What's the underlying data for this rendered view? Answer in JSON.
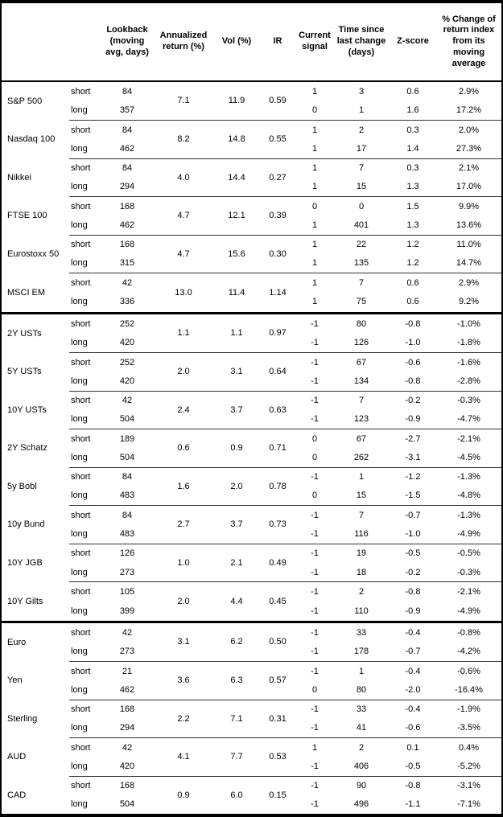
{
  "colors": {
    "border": "#000000",
    "text": "#000000",
    "background": "#ffffff"
  },
  "table": {
    "columns": [
      {
        "id": "asset",
        "label": ""
      },
      {
        "id": "leg",
        "label": ""
      },
      {
        "id": "lookback",
        "label": "Lookback (moving avg, days)"
      },
      {
        "id": "annualized_return",
        "label": "Annualized return (%)"
      },
      {
        "id": "vol",
        "label": "Vol (%)"
      },
      {
        "id": "ir",
        "label": "IR"
      },
      {
        "id": "current_signal",
        "label": "Current signal"
      },
      {
        "id": "time_since_last_change",
        "label": "Time since last change (days)"
      },
      {
        "id": "z_score",
        "label": "Z-score"
      },
      {
        "id": "pct_change_from_ma",
        "label": "% Change of return index from its moving average"
      }
    ],
    "sections": [
      {
        "assets": [
          {
            "name": "S&P 500",
            "annualized_return": "7.1",
            "vol": "11.9",
            "ir": "0.59",
            "rows": [
              {
                "leg": "short",
                "lookback": "84",
                "current_signal": "1",
                "time_since_last_change": "3",
                "z_score": "0.6",
                "pct_change_from_ma": "2.9%"
              },
              {
                "leg": "long",
                "lookback": "357",
                "current_signal": "0",
                "time_since_last_change": "1",
                "z_score": "1.6",
                "pct_change_from_ma": "17.2%"
              }
            ]
          },
          {
            "name": "Nasdaq 100",
            "annualized_return": "8.2",
            "vol": "14.8",
            "ir": "0.55",
            "rows": [
              {
                "leg": "short",
                "lookback": "84",
                "current_signal": "1",
                "time_since_last_change": "2",
                "z_score": "0.3",
                "pct_change_from_ma": "2.0%"
              },
              {
                "leg": "long",
                "lookback": "462",
                "current_signal": "1",
                "time_since_last_change": "17",
                "z_score": "1.4",
                "pct_change_from_ma": "27.3%"
              }
            ]
          },
          {
            "name": "Nikkei",
            "annualized_return": "4.0",
            "vol": "14.4",
            "ir": "0.27",
            "rows": [
              {
                "leg": "short",
                "lookback": "84",
                "current_signal": "1",
                "time_since_last_change": "7",
                "z_score": "0.3",
                "pct_change_from_ma": "2.1%"
              },
              {
                "leg": "long",
                "lookback": "294",
                "current_signal": "1",
                "time_since_last_change": "15",
                "z_score": "1.3",
                "pct_change_from_ma": "17.0%"
              }
            ]
          },
          {
            "name": "FTSE 100",
            "annualized_return": "4.7",
            "vol": "12.1",
            "ir": "0.39",
            "rows": [
              {
                "leg": "short",
                "lookback": "168",
                "current_signal": "0",
                "time_since_last_change": "0",
                "z_score": "1.5",
                "pct_change_from_ma": "9.9%"
              },
              {
                "leg": "long",
                "lookback": "462",
                "current_signal": "1",
                "time_since_last_change": "401",
                "z_score": "1.3",
                "pct_change_from_ma": "13.6%"
              }
            ]
          },
          {
            "name": "Eurostoxx 50",
            "annualized_return": "4.7",
            "vol": "15.6",
            "ir": "0.30",
            "rows": [
              {
                "leg": "short",
                "lookback": "168",
                "current_signal": "1",
                "time_since_last_change": "22",
                "z_score": "1.2",
                "pct_change_from_ma": "11.0%"
              },
              {
                "leg": "long",
                "lookback": "315",
                "current_signal": "1",
                "time_since_last_change": "135",
                "z_score": "1.2",
                "pct_change_from_ma": "14.7%"
              }
            ]
          },
          {
            "name": "MSCI EM",
            "annualized_return": "13.0",
            "vol": "11.4",
            "ir": "1.14",
            "rows": [
              {
                "leg": "short",
                "lookback": "42",
                "current_signal": "1",
                "time_since_last_change": "7",
                "z_score": "0.6",
                "pct_change_from_ma": "2.9%"
              },
              {
                "leg": "long",
                "lookback": "336",
                "current_signal": "1",
                "time_since_last_change": "75",
                "z_score": "0.6",
                "pct_change_from_ma": "9.2%"
              }
            ]
          }
        ]
      },
      {
        "assets": [
          {
            "name": "2Y USTs",
            "annualized_return": "1.1",
            "vol": "1.1",
            "ir": "0.97",
            "rows": [
              {
                "leg": "short",
                "lookback": "252",
                "current_signal": "-1",
                "time_since_last_change": "80",
                "z_score": "-0.8",
                "pct_change_from_ma": "-1.0%"
              },
              {
                "leg": "long",
                "lookback": "420",
                "current_signal": "-1",
                "time_since_last_change": "126",
                "z_score": "-1.0",
                "pct_change_from_ma": "-1.8%"
              }
            ]
          },
          {
            "name": "5Y USTs",
            "annualized_return": "2.0",
            "vol": "3.1",
            "ir": "0.64",
            "rows": [
              {
                "leg": "short",
                "lookback": "252",
                "current_signal": "-1",
                "time_since_last_change": "67",
                "z_score": "-0.6",
                "pct_change_from_ma": "-1.6%"
              },
              {
                "leg": "long",
                "lookback": "420",
                "current_signal": "-1",
                "time_since_last_change": "134",
                "z_score": "-0.8",
                "pct_change_from_ma": "-2.8%"
              }
            ]
          },
          {
            "name": "10Y USTs",
            "annualized_return": "2.4",
            "vol": "3.7",
            "ir": "0.63",
            "rows": [
              {
                "leg": "short",
                "lookback": "42",
                "current_signal": "-1",
                "time_since_last_change": "7",
                "z_score": "-0.2",
                "pct_change_from_ma": "-0.3%"
              },
              {
                "leg": "long",
                "lookback": "504",
                "current_signal": "-1",
                "time_since_last_change": "123",
                "z_score": "-0.9",
                "pct_change_from_ma": "-4.7%"
              }
            ]
          },
          {
            "name": "2Y Schatz",
            "annualized_return": "0.6",
            "vol": "0.9",
            "ir": "0.71",
            "rows": [
              {
                "leg": "short",
                "lookback": "189",
                "current_signal": "0",
                "time_since_last_change": "67",
                "z_score": "-2.7",
                "pct_change_from_ma": "-2.1%"
              },
              {
                "leg": "long",
                "lookback": "504",
                "current_signal": "0",
                "time_since_last_change": "262",
                "z_score": "-3.1",
                "pct_change_from_ma": "-4.5%"
              }
            ]
          },
          {
            "name": "5y Bobl",
            "annualized_return": "1.6",
            "vol": "2.0",
            "ir": "0.78",
            "rows": [
              {
                "leg": "short",
                "lookback": "84",
                "current_signal": "-1",
                "time_since_last_change": "1",
                "z_score": "-1.2",
                "pct_change_from_ma": "-1.3%"
              },
              {
                "leg": "long",
                "lookback": "483",
                "current_signal": "0",
                "time_since_last_change": "15",
                "z_score": "-1.5",
                "pct_change_from_ma": "-4.8%"
              }
            ]
          },
          {
            "name": "10y Bund",
            "annualized_return": "2.7",
            "vol": "3.7",
            "ir": "0.73",
            "rows": [
              {
                "leg": "short",
                "lookback": "84",
                "current_signal": "-1",
                "time_since_last_change": "7",
                "z_score": "-0.7",
                "pct_change_from_ma": "-1.3%"
              },
              {
                "leg": "long",
                "lookback": "483",
                "current_signal": "-1",
                "time_since_last_change": "116",
                "z_score": "-1.0",
                "pct_change_from_ma": "-4.9%"
              }
            ]
          },
          {
            "name": "10Y JGB",
            "annualized_return": "1.0",
            "vol": "2.1",
            "ir": "0.49",
            "rows": [
              {
                "leg": "short",
                "lookback": "126",
                "current_signal": "-1",
                "time_since_last_change": "19",
                "z_score": "-0.5",
                "pct_change_from_ma": "-0.5%"
              },
              {
                "leg": "long",
                "lookback": "273",
                "current_signal": "-1",
                "time_since_last_change": "18",
                "z_score": "-0.2",
                "pct_change_from_ma": "-0.3%"
              }
            ]
          },
          {
            "name": "10Y Gilts",
            "annualized_return": "2.0",
            "vol": "4.4",
            "ir": "0.45",
            "rows": [
              {
                "leg": "short",
                "lookback": "105",
                "current_signal": "-1",
                "time_since_last_change": "2",
                "z_score": "-0.8",
                "pct_change_from_ma": "-2.1%"
              },
              {
                "leg": "long",
                "lookback": "399",
                "current_signal": "-1",
                "time_since_last_change": "110",
                "z_score": "-0.9",
                "pct_change_from_ma": "-4.9%"
              }
            ]
          }
        ]
      },
      {
        "assets": [
          {
            "name": "Euro",
            "annualized_return": "3.1",
            "vol": "6.2",
            "ir": "0.50",
            "rows": [
              {
                "leg": "short",
                "lookback": "42",
                "current_signal": "-1",
                "time_since_last_change": "33",
                "z_score": "-0.4",
                "pct_change_from_ma": "-0.8%"
              },
              {
                "leg": "long",
                "lookback": "273",
                "current_signal": "-1",
                "time_since_last_change": "178",
                "z_score": "-0.7",
                "pct_change_from_ma": "-4.2%"
              }
            ]
          },
          {
            "name": "Yen",
            "annualized_return": "3.6",
            "vol": "6.3",
            "ir": "0.57",
            "rows": [
              {
                "leg": "short",
                "lookback": "21",
                "current_signal": "-1",
                "time_since_last_change": "1",
                "z_score": "-0.4",
                "pct_change_from_ma": "-0.6%"
              },
              {
                "leg": "long",
                "lookback": "462",
                "current_signal": "0",
                "time_since_last_change": "80",
                "z_score": "-2.0",
                "pct_change_from_ma": "-16.4%"
              }
            ]
          },
          {
            "name": "Sterling",
            "annualized_return": "2.2",
            "vol": "7.1",
            "ir": "0.31",
            "rows": [
              {
                "leg": "short",
                "lookback": "168",
                "current_signal": "-1",
                "time_since_last_change": "33",
                "z_score": "-0.4",
                "pct_change_from_ma": "-1.9%"
              },
              {
                "leg": "long",
                "lookback": "294",
                "current_signal": "-1",
                "time_since_last_change": "41",
                "z_score": "-0.6",
                "pct_change_from_ma": "-3.5%"
              }
            ]
          },
          {
            "name": "AUD",
            "annualized_return": "4.1",
            "vol": "7.7",
            "ir": "0.53",
            "rows": [
              {
                "leg": "short",
                "lookback": "42",
                "current_signal": "1",
                "time_since_last_change": "2",
                "z_score": "0.1",
                "pct_change_from_ma": "0.4%"
              },
              {
                "leg": "long",
                "lookback": "420",
                "current_signal": "-1",
                "time_since_last_change": "406",
                "z_score": "-0.5",
                "pct_change_from_ma": "-5.2%"
              }
            ]
          },
          {
            "name": "CAD",
            "annualized_return": "0.9",
            "vol": "6.0",
            "ir": "0.15",
            "rows": [
              {
                "leg": "short",
                "lookback": "168",
                "current_signal": "-1",
                "time_since_last_change": "90",
                "z_score": "-0.8",
                "pct_change_from_ma": "-3.1%"
              },
              {
                "leg": "long",
                "lookback": "504",
                "current_signal": "-1",
                "time_since_last_change": "496",
                "z_score": "-1.1",
                "pct_change_from_ma": "-7.1%"
              }
            ]
          }
        ]
      }
    ]
  }
}
